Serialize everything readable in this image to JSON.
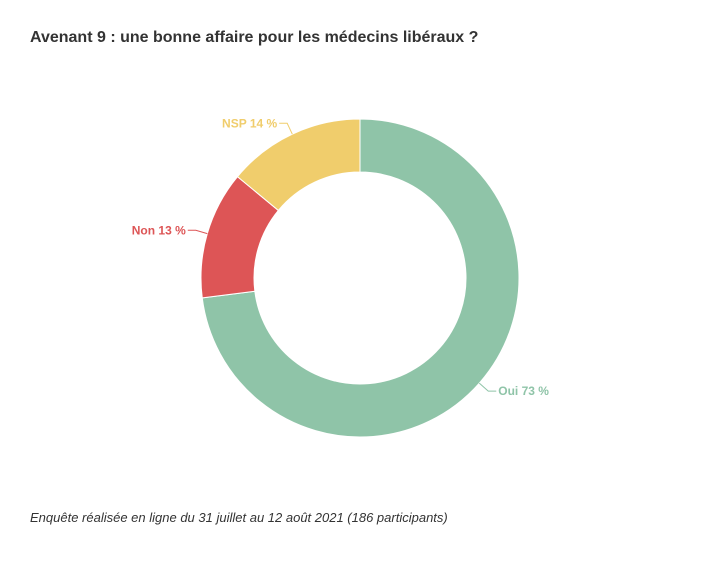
{
  "title": "Avenant 9 : une bonne affaire pour les médecins libéraux ?",
  "footnote": "Enquête réalisée en ligne du 31 juillet au 12 août 2021 (186 participants)",
  "chart_data": {
    "type": "pie",
    "variant": "donut",
    "slices": [
      {
        "label": "Oui",
        "value": 73,
        "display": "Oui 73 %",
        "color": "#8fc4a8"
      },
      {
        "label": "Non",
        "value": 13,
        "display": "Non 13 %",
        "color": "#dd5556"
      },
      {
        "label": "NSP",
        "value": 14,
        "display": "NSP 14 %",
        "color": "#f0cd6c"
      }
    ],
    "start": "top",
    "direction": "clockwise",
    "legend": "none"
  }
}
